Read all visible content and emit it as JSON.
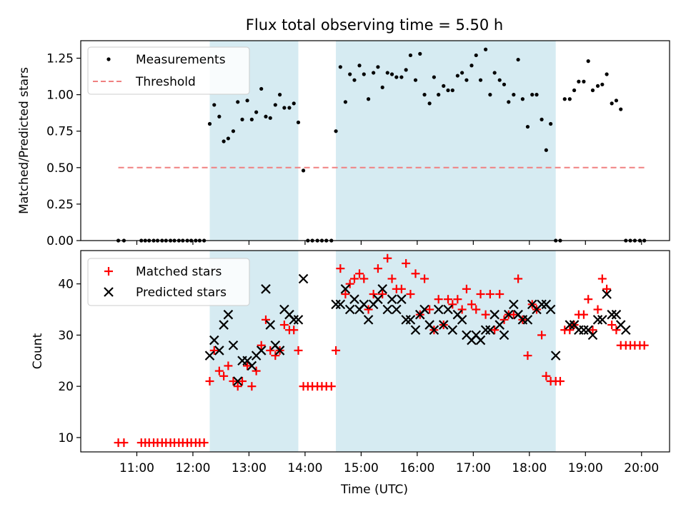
{
  "figure": {
    "title": "Flux total observing time = 5.50 h",
    "xlabel": "Time (UTC)"
  },
  "chart_data": [
    {
      "type": "scatter",
      "ylabel": "Matched/Predicted stars",
      "xlim": [
        10.0,
        20.5
      ],
      "ylim": [
        0.0,
        1.37
      ],
      "yticks": [
        0.0,
        0.25,
        0.5,
        0.75,
        1.0,
        1.25
      ],
      "ytick_labels": [
        "0.00",
        "0.25",
        "0.50",
        "0.75",
        "1.00",
        "1.25"
      ],
      "grid": false,
      "legend": "top-left",
      "shaded_spans": [
        [
          12.3,
          13.88
        ],
        [
          14.55,
          18.47
        ]
      ],
      "shade_color": "#add8e6",
      "threshold": {
        "name": "Threshold",
        "y": 0.5,
        "x_range": [
          10.67,
          20.05
        ],
        "color": "#f08080",
        "style": "dashed"
      },
      "series": [
        {
          "name": "Measurements",
          "marker": "dot",
          "color": "#000000",
          "x": [
            10.67,
            10.77,
            11.08,
            11.15,
            11.22,
            11.3,
            11.37,
            11.45,
            11.52,
            11.6,
            11.67,
            11.75,
            11.82,
            11.9,
            11.97,
            12.05,
            12.12,
            12.2,
            12.3,
            12.38,
            12.47,
            12.55,
            12.63,
            12.72,
            12.8,
            12.88,
            12.97,
            13.05,
            13.13,
            13.22,
            13.3,
            13.38,
            13.47,
            13.55,
            13.63,
            13.72,
            13.8,
            13.88,
            13.97,
            14.05,
            14.13,
            14.22,
            14.3,
            14.38,
            14.47,
            14.55,
            14.63,
            14.72,
            14.8,
            14.88,
            14.97,
            15.05,
            15.13,
            15.22,
            15.3,
            15.38,
            15.47,
            15.55,
            15.63,
            15.72,
            15.8,
            15.88,
            15.97,
            16.05,
            16.13,
            16.22,
            16.3,
            16.38,
            16.47,
            16.55,
            16.63,
            16.72,
            16.8,
            16.88,
            16.97,
            17.05,
            17.13,
            17.22,
            17.3,
            17.38,
            17.47,
            17.55,
            17.63,
            17.72,
            17.8,
            17.88,
            17.97,
            18.05,
            18.13,
            18.22,
            18.3,
            18.38,
            18.47,
            18.55,
            18.63,
            18.72,
            18.8,
            18.88,
            18.97,
            19.05,
            19.13,
            19.22,
            19.3,
            19.38,
            19.47,
            19.55,
            19.63,
            19.72,
            19.8,
            19.88,
            19.97,
            20.05
          ],
          "y": [
            0.0,
            0.0,
            0.0,
            0.0,
            0.0,
            0.0,
            0.0,
            0.0,
            0.0,
            0.0,
            0.0,
            0.0,
            0.0,
            0.0,
            0.0,
            0.0,
            0.0,
            0.0,
            0.8,
            0.93,
            0.85,
            0.68,
            0.7,
            0.75,
            0.95,
            0.83,
            0.96,
            0.83,
            0.88,
            1.04,
            0.85,
            0.84,
            0.93,
            1.0,
            0.91,
            0.91,
            0.94,
            0.81,
            0.48,
            0.0,
            0.0,
            0.0,
            0.0,
            0.0,
            0.0,
            0.75,
            1.19,
            0.95,
            1.14,
            1.1,
            1.2,
            1.14,
            0.97,
            1.15,
            1.19,
            1.05,
            1.15,
            1.14,
            1.12,
            1.12,
            1.17,
            1.27,
            1.1,
            1.28,
            1.0,
            0.94,
            1.12,
            1.0,
            1.06,
            1.03,
            1.03,
            1.13,
            1.15,
            1.1,
            1.2,
            1.27,
            1.1,
            1.31,
            1.0,
            1.15,
            1.1,
            1.07,
            0.95,
            1.0,
            1.24,
            0.97,
            0.78,
            1.0,
            1.0,
            0.83,
            0.62,
            0.8,
            0.0,
            0.0,
            0.97,
            0.97,
            1.03,
            1.09,
            1.09,
            1.23,
            1.03,
            1.06,
            1.07,
            1.14,
            0.94,
            0.96,
            0.9,
            0.0,
            0.0,
            0.0,
            0.0,
            0.0
          ]
        }
      ]
    },
    {
      "type": "scatter",
      "ylabel": "Count",
      "xlim": [
        10.0,
        20.5
      ],
      "ylim": [
        7.2,
        46.5
      ],
      "yticks": [
        10,
        20,
        30,
        40
      ],
      "ytick_labels": [
        "10",
        "20",
        "30",
        "40"
      ],
      "xticks": [
        11,
        12,
        13,
        14,
        15,
        16,
        17,
        18,
        19,
        20
      ],
      "xtick_labels": [
        "11:00",
        "12:00",
        "13:00",
        "14:00",
        "15:00",
        "16:00",
        "17:00",
        "18:00",
        "19:00",
        "20:00"
      ],
      "grid": false,
      "legend": "top-left",
      "shaded_spans": [
        [
          12.3,
          13.88
        ],
        [
          14.55,
          18.47
        ]
      ],
      "shade_color": "#add8e6",
      "series": [
        {
          "name": "Matched stars",
          "marker": "plus",
          "color": "#ff0000",
          "x": [
            10.67,
            10.77,
            11.08,
            11.15,
            11.22,
            11.3,
            11.37,
            11.45,
            11.52,
            11.6,
            11.67,
            11.75,
            11.82,
            11.9,
            11.97,
            12.05,
            12.12,
            12.2,
            12.3,
            12.38,
            12.47,
            12.55,
            12.63,
            12.72,
            12.8,
            12.88,
            12.97,
            13.05,
            13.13,
            13.22,
            13.3,
            13.38,
            13.47,
            13.55,
            13.63,
            13.72,
            13.8,
            13.88,
            13.97,
            14.05,
            14.13,
            14.22,
            14.3,
            14.38,
            14.47,
            14.55,
            14.63,
            14.72,
            14.8,
            14.88,
            14.97,
            15.05,
            15.13,
            15.22,
            15.3,
            15.38,
            15.47,
            15.55,
            15.63,
            15.72,
            15.8,
            15.88,
            15.97,
            16.05,
            16.13,
            16.22,
            16.3,
            16.38,
            16.47,
            16.55,
            16.63,
            16.72,
            16.8,
            16.88,
            16.97,
            17.05,
            17.13,
            17.22,
            17.3,
            17.38,
            17.47,
            17.55,
            17.63,
            17.72,
            17.8,
            17.88,
            17.97,
            18.05,
            18.13,
            18.22,
            18.3,
            18.38,
            18.47,
            18.55,
            18.63,
            18.72,
            18.8,
            18.88,
            18.97,
            19.05,
            19.13,
            19.22,
            19.3,
            19.38,
            19.47,
            19.55,
            19.63,
            19.72,
            19.8,
            19.88,
            19.97,
            20.05
          ],
          "y": [
            9,
            9,
            9,
            9,
            9,
            9,
            9,
            9,
            9,
            9,
            9,
            9,
            9,
            9,
            9,
            9,
            9,
            9,
            21,
            27,
            23,
            22,
            24,
            21,
            20,
            21,
            24,
            20,
            23,
            28,
            33,
            27,
            26,
            27,
            32,
            31,
            31,
            27,
            20,
            20,
            20,
            20,
            20,
            20,
            20,
            27,
            43,
            38,
            40,
            41,
            42,
            41,
            35,
            38,
            43,
            38,
            45,
            41,
            39,
            39,
            44,
            38,
            42,
            34,
            41,
            35,
            31,
            37,
            32,
            37,
            36,
            37,
            35,
            39,
            36,
            35,
            38,
            34,
            38,
            31,
            38,
            33,
            34,
            34,
            41,
            33,
            26,
            36,
            35,
            30,
            22,
            21,
            21,
            21,
            31,
            31,
            32,
            34,
            34,
            37,
            31,
            35,
            41,
            39,
            32,
            31,
            28,
            28,
            28,
            28,
            28,
            28
          ]
        },
        {
          "name": "Predicted stars",
          "marker": "x",
          "color": "#000000",
          "x": [
            12.3,
            12.38,
            12.47,
            12.55,
            12.63,
            12.72,
            12.8,
            12.88,
            12.97,
            13.05,
            13.13,
            13.22,
            13.3,
            13.38,
            13.47,
            13.55,
            13.63,
            13.72,
            13.8,
            13.88,
            13.97,
            14.55,
            14.63,
            14.72,
            14.8,
            14.88,
            14.97,
            15.05,
            15.13,
            15.22,
            15.3,
            15.38,
            15.47,
            15.55,
            15.63,
            15.72,
            15.8,
            15.88,
            15.97,
            16.05,
            16.13,
            16.22,
            16.3,
            16.38,
            16.47,
            16.55,
            16.63,
            16.72,
            16.8,
            16.88,
            16.97,
            17.05,
            17.13,
            17.22,
            17.3,
            17.38,
            17.47,
            17.55,
            17.63,
            17.72,
            17.8,
            17.88,
            17.97,
            18.05,
            18.13,
            18.22,
            18.3,
            18.38,
            18.47,
            18.72,
            18.8,
            18.88,
            18.97,
            19.05,
            19.13,
            19.22,
            19.3,
            19.38,
            19.47,
            19.55,
            19.63,
            19.72
          ],
          "y": [
            26,
            29,
            27,
            32,
            34,
            28,
            21,
            25,
            25,
            24,
            26,
            27,
            39,
            32,
            28,
            27,
            35,
            34,
            33,
            33,
            41,
            36,
            36,
            39,
            35,
            37,
            35,
            36,
            33,
            36,
            37,
            39,
            35,
            37,
            35,
            37,
            33,
            33,
            31,
            34,
            35,
            32,
            31,
            35,
            32,
            35,
            31,
            34,
            33,
            30,
            29,
            30,
            29,
            31,
            31,
            34,
            32,
            30,
            34,
            36,
            34,
            33,
            33,
            36,
            35,
            36,
            36,
            35,
            26,
            32,
            32,
            31,
            31,
            31,
            30,
            33,
            33,
            38,
            34,
            34,
            32,
            31
          ]
        }
      ]
    }
  ]
}
